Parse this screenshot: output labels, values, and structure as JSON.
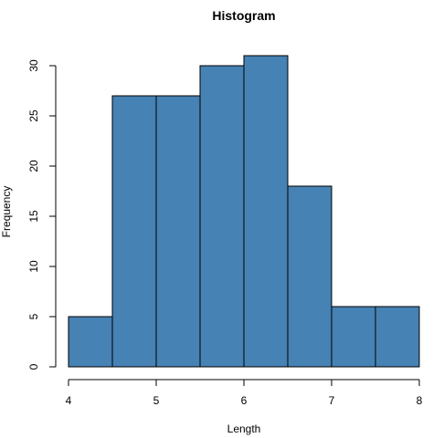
{
  "chart_data": {
    "type": "bar",
    "title": "Histogram",
    "xlabel": "Length",
    "ylabel": "Frequency",
    "bin_edges": [
      4,
      4.5,
      5,
      5.5,
      6,
      6.5,
      7,
      7.5,
      8
    ],
    "values": [
      5,
      27,
      27,
      30,
      31,
      18,
      6,
      6
    ],
    "xlim": [
      4,
      8
    ],
    "ylim": [
      0,
      31
    ],
    "xticks": [
      4,
      5,
      6,
      7,
      8
    ],
    "yticks": [
      0,
      5,
      10,
      15,
      20,
      25,
      30
    ],
    "grid": false,
    "bar_color": "#4682b4"
  }
}
